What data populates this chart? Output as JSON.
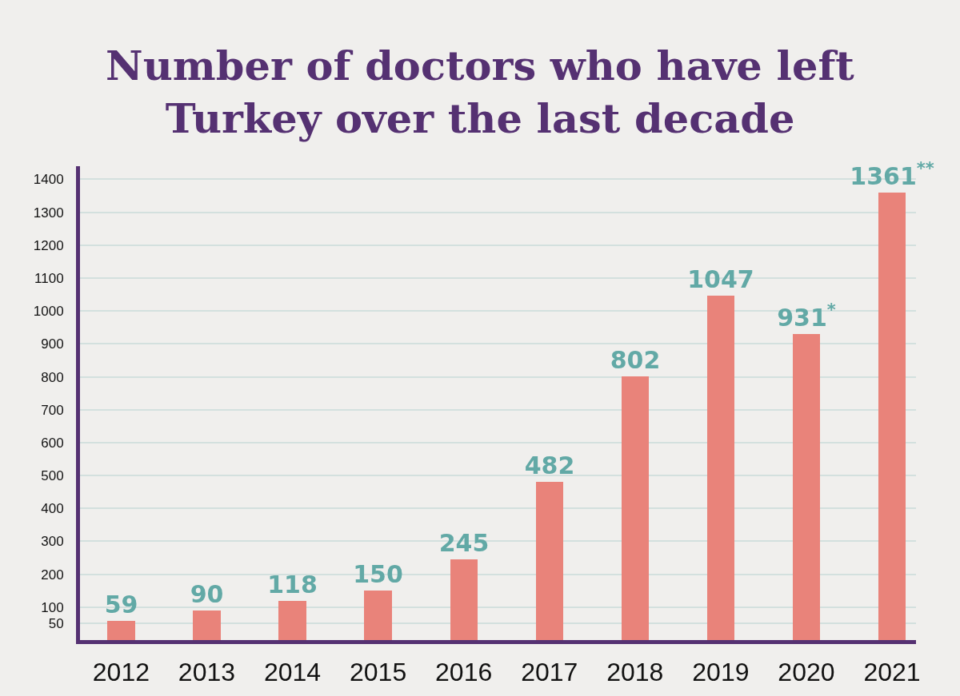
{
  "chart_data": {
    "type": "bar",
    "title": "Number of doctors who have left Turkey over the last decade",
    "categories": [
      "2012",
      "2013",
      "2014",
      "2015",
      "2016",
      "2017",
      "2018",
      "2019",
      "2020",
      "2021"
    ],
    "values": [
      59,
      90,
      118,
      150,
      245,
      482,
      802,
      1047,
      931,
      1361
    ],
    "color": "#e9837a",
    "value_labels": [
      "59",
      "90",
      "118",
      "150",
      "245",
      "482",
      "802",
      "1047",
      "931$^{*}$",
      "1361$^{**}$"
    ],
    "ylim": [
      0,
      1440
    ],
    "yticks": [
      50,
      100,
      200,
      300,
      400,
      500,
      600,
      700,
      800,
      900,
      1000,
      1100,
      1200,
      1300,
      1400
    ],
    "grid": "y"
  }
}
